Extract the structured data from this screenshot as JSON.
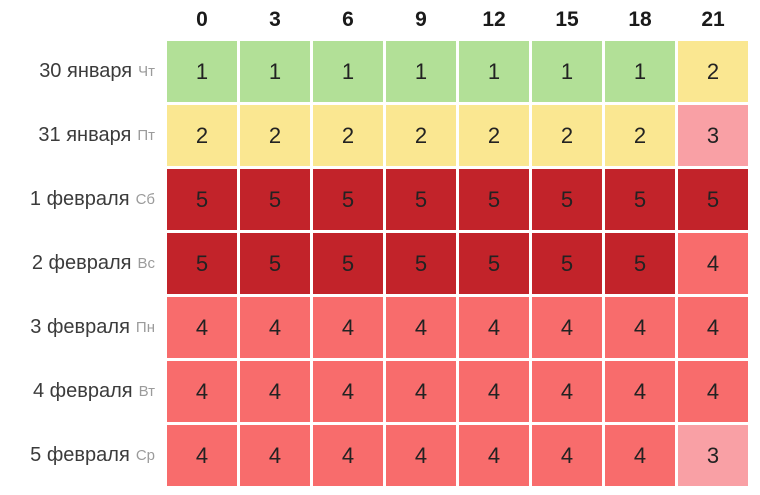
{
  "chart_data": {
    "type": "heatmap",
    "title": "",
    "columns": [
      "0",
      "3",
      "6",
      "9",
      "12",
      "15",
      "18",
      "21"
    ],
    "rows": [
      {
        "date": "30 января",
        "weekday": "Чт",
        "values": [
          1,
          1,
          1,
          1,
          1,
          1,
          1,
          2
        ]
      },
      {
        "date": "31 января",
        "weekday": "Пт",
        "values": [
          2,
          2,
          2,
          2,
          2,
          2,
          2,
          3
        ]
      },
      {
        "date": "1 февраля",
        "weekday": "Сб",
        "values": [
          5,
          5,
          5,
          5,
          5,
          5,
          5,
          5
        ]
      },
      {
        "date": "2 февраля",
        "weekday": "Вс",
        "values": [
          5,
          5,
          5,
          5,
          5,
          5,
          5,
          4
        ]
      },
      {
        "date": "3 февраля",
        "weekday": "Пн",
        "values": [
          4,
          4,
          4,
          4,
          4,
          4,
          4,
          4
        ]
      },
      {
        "date": "4 февраля",
        "weekday": "Вт",
        "values": [
          4,
          4,
          4,
          4,
          4,
          4,
          4,
          4
        ]
      },
      {
        "date": "5 февраля",
        "weekday": "Ср",
        "values": [
          4,
          4,
          4,
          4,
          4,
          4,
          4,
          3
        ]
      }
    ],
    "value_colors": {
      "1": "#b2e097",
      "2": "#fae791",
      "3": "#f9a0a5",
      "4": "#f86c6c",
      "5": "#c2232a"
    },
    "text_color": "#222222",
    "header_text_color": "#1a1a1a",
    "date_text_color": "#3b3b3b",
    "weekday_text_color": "#9b9b9b",
    "gap_color": "#ffffff",
    "legend_position": "none",
    "grid": false
  }
}
